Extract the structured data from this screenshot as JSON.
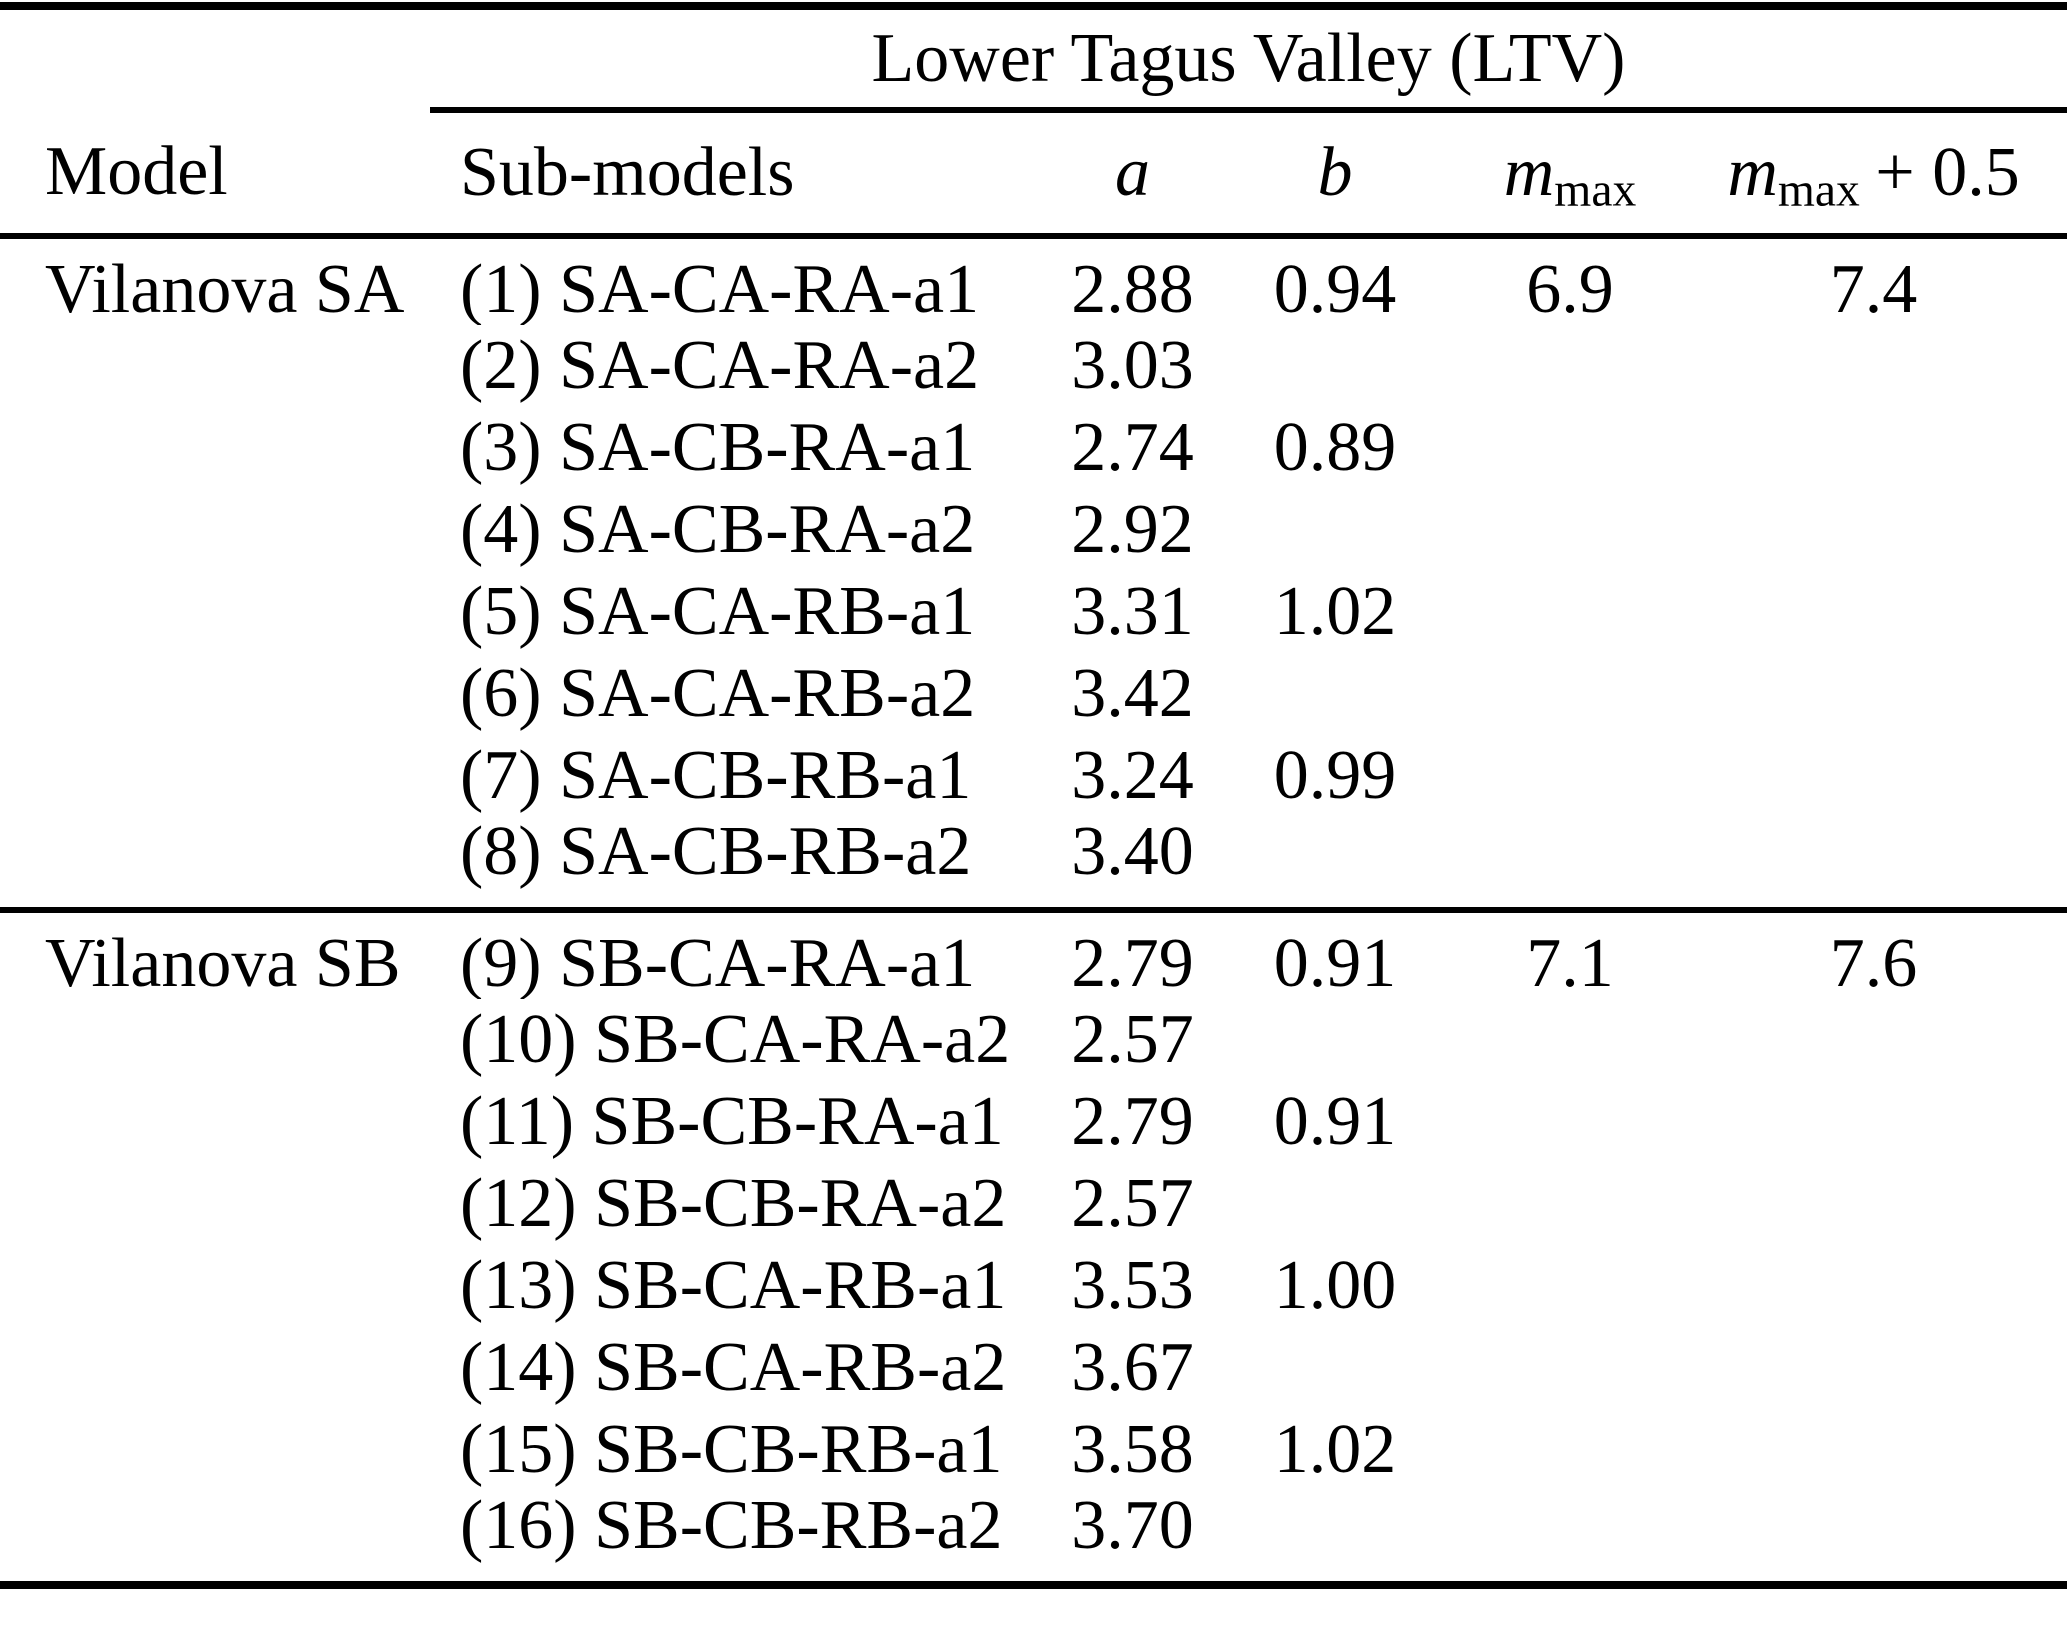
{
  "colors": {
    "text": "#000000",
    "background": "#ffffff",
    "rule": "#000000"
  },
  "region_header": {
    "label": "Lower Tagus Valley (LTV)"
  },
  "columns": {
    "model": "Model",
    "submodels": "Sub-models",
    "a": "a",
    "b": "b",
    "mmax": {
      "base": "m",
      "sub": "max"
    },
    "mmax_plus": {
      "base": "m",
      "sub": "max",
      "suffix": "+ 0.5"
    }
  },
  "groups": [
    {
      "model": "Vilanova SA",
      "rows": [
        {
          "model": "Vilanova SA",
          "submodel": "(1) SA-CA-RA-a1",
          "a": "2.88",
          "b": "0.94",
          "mmax": "6.9",
          "mmax05": "7.4"
        },
        {
          "submodel": "(2) SA-CA-RA-a2",
          "a": "3.03"
        },
        {
          "submodel": "(3) SA-CB-RA-a1",
          "a": "2.74",
          "b": "0.89"
        },
        {
          "submodel": "(4) SA-CB-RA-a2",
          "a": "2.92"
        },
        {
          "submodel": "(5) SA-CA-RB-a1",
          "a": "3.31",
          "b": "1.02"
        },
        {
          "submodel": "(6) SA-CA-RB-a2",
          "a": "3.42"
        },
        {
          "submodel": "(7) SA-CB-RB-a1",
          "a": "3.24",
          "b": "0.99"
        },
        {
          "submodel": "(8) SA-CB-RB-a2",
          "a": "3.40"
        }
      ]
    },
    {
      "model": "Vilanova SB",
      "rows": [
        {
          "model": "Vilanova SB",
          "submodel": "(9) SB-CA-RA-a1",
          "a": "2.79",
          "b": "0.91",
          "mmax": "7.1",
          "mmax05": "7.6"
        },
        {
          "submodel": "(10) SB-CA-RA-a2",
          "a": "2.57"
        },
        {
          "submodel": "(11) SB-CB-RA-a1",
          "a": "2.79",
          "b": "0.91"
        },
        {
          "submodel": "(12) SB-CB-RA-a2",
          "a": "2.57"
        },
        {
          "submodel": "(13) SB-CA-RB-a1",
          "a": "3.53",
          "b": "1.00"
        },
        {
          "submodel": "(14) SB-CA-RB-a2",
          "a": "3.67"
        },
        {
          "submodel": "(15) SB-CB-RB-a1",
          "a": "3.58",
          "b": "1.02"
        },
        {
          "submodel": "(16) SB-CB-RB-a2",
          "a": "3.70"
        }
      ]
    }
  ]
}
